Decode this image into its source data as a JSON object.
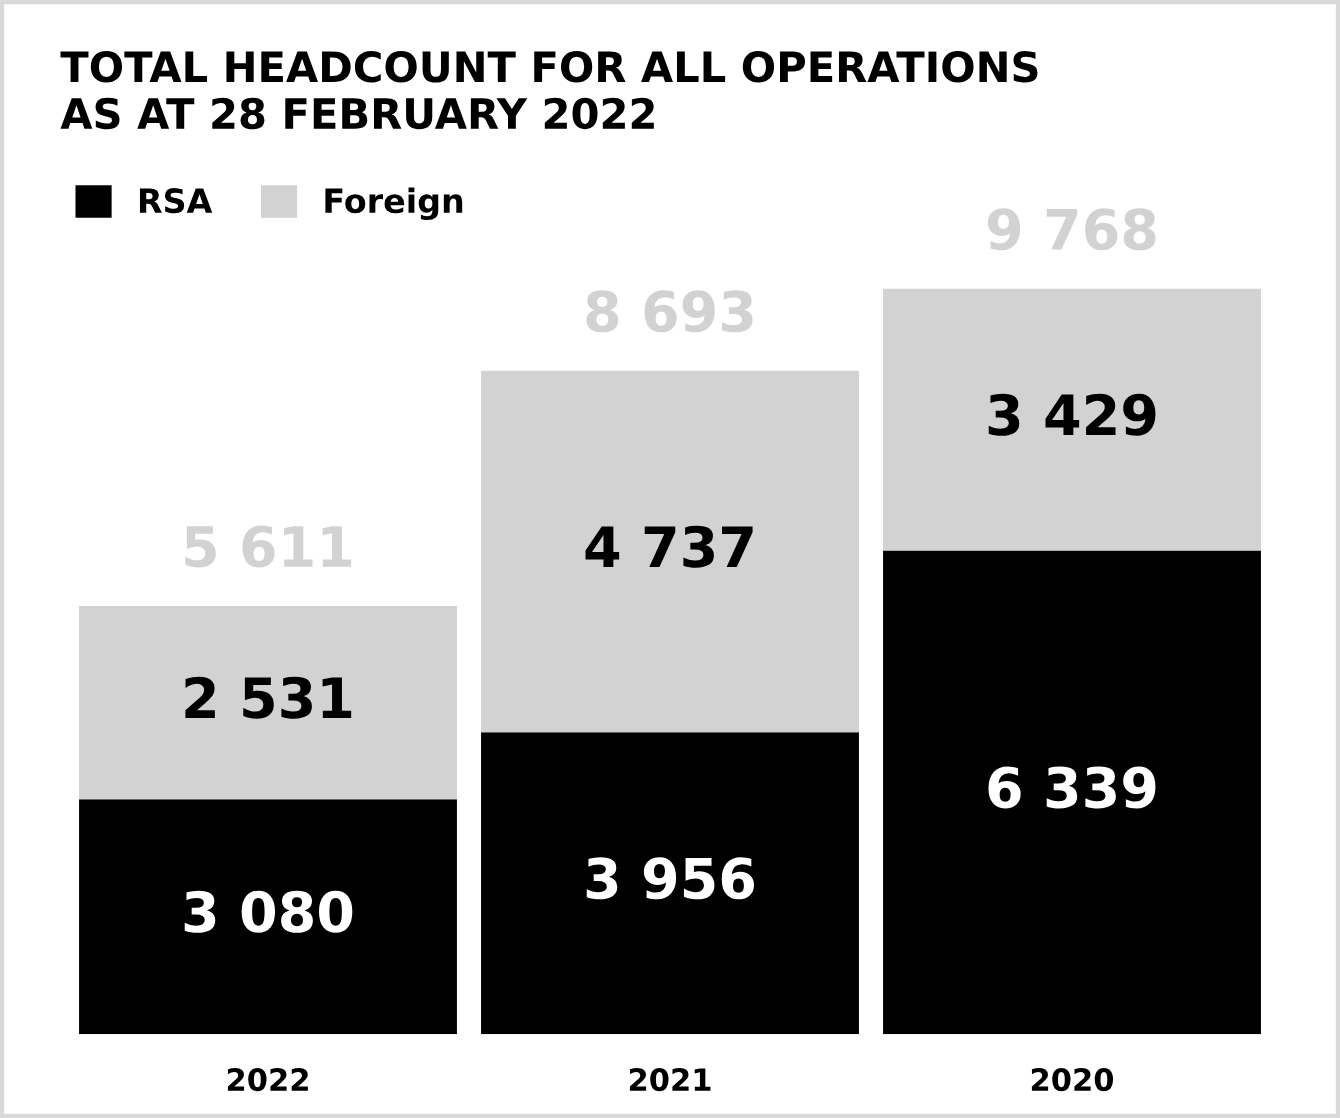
{
  "chart_data": {
    "type": "bar",
    "stacked": true,
    "title": "TOTAL HEADCOUNT FOR ALL OPERATIONS\nAS AT 28 FEBRUARY 2022",
    "categories": [
      "2022",
      "2021",
      "2020"
    ],
    "series": [
      {
        "name": "RSA",
        "color": "#000000",
        "values": [
          3080,
          3956,
          6339
        ],
        "value_labels": [
          "3 080",
          "3 956",
          "6 339"
        ]
      },
      {
        "name": "Foreign",
        "color": "#d2d2d2",
        "values": [
          2531,
          4737,
          3429
        ],
        "value_labels": [
          "2 531",
          "4 737",
          "3 429"
        ]
      }
    ],
    "totals": [
      "5 611",
      "8 693",
      "9 768"
    ],
    "legend": "top left",
    "grid": false,
    "tick_labels": "x"
  }
}
